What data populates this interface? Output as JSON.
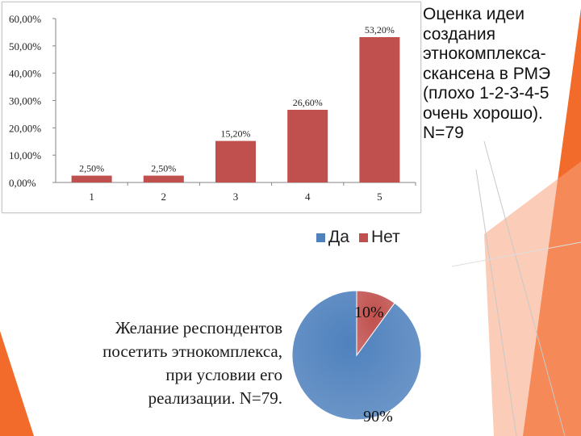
{
  "colors": {
    "accent_orange": "#f26b2a",
    "accent_light": "#f7a27c",
    "bar_color": "#c0504d",
    "pie_yes": "#4f81bd",
    "pie_no": "#c0504d"
  },
  "side_caption": "Оценка идеи\nсоздания\nэтнокомплекса-\nскансена в РМЭ\n(плохо 1-2-3-4-5\nочень хорошо).\nN=79",
  "pie_caption": "Желание респондентов\nпосетить этнокомплекса,\nпри условии его\nреализации. N=79.",
  "chart_data": [
    {
      "type": "bar",
      "categories": [
        "1",
        "2",
        "3",
        "4",
        "5"
      ],
      "values": [
        2.5,
        2.5,
        15.2,
        26.6,
        53.2
      ],
      "value_labels": [
        "2,50%",
        "2,50%",
        "15,20%",
        "26,60%",
        "53,20%"
      ],
      "ytick_values": [
        0,
        10,
        20,
        30,
        40,
        50,
        60
      ],
      "ytick_labels": [
        "0,00%",
        "10,00%",
        "20,00%",
        "30,00%",
        "40,00%",
        "50,00%",
        "60,00%"
      ],
      "ylim": [
        0,
        60
      ],
      "grid": false,
      "legend": "none",
      "color": "#c0504d"
    },
    {
      "type": "pie",
      "labels": [
        "Да",
        "Нет"
      ],
      "values": [
        90,
        10
      ],
      "value_labels": [
        "90%",
        "10%"
      ],
      "colors": [
        "#4f81bd",
        "#c0504d"
      ],
      "legend": "top"
    }
  ]
}
